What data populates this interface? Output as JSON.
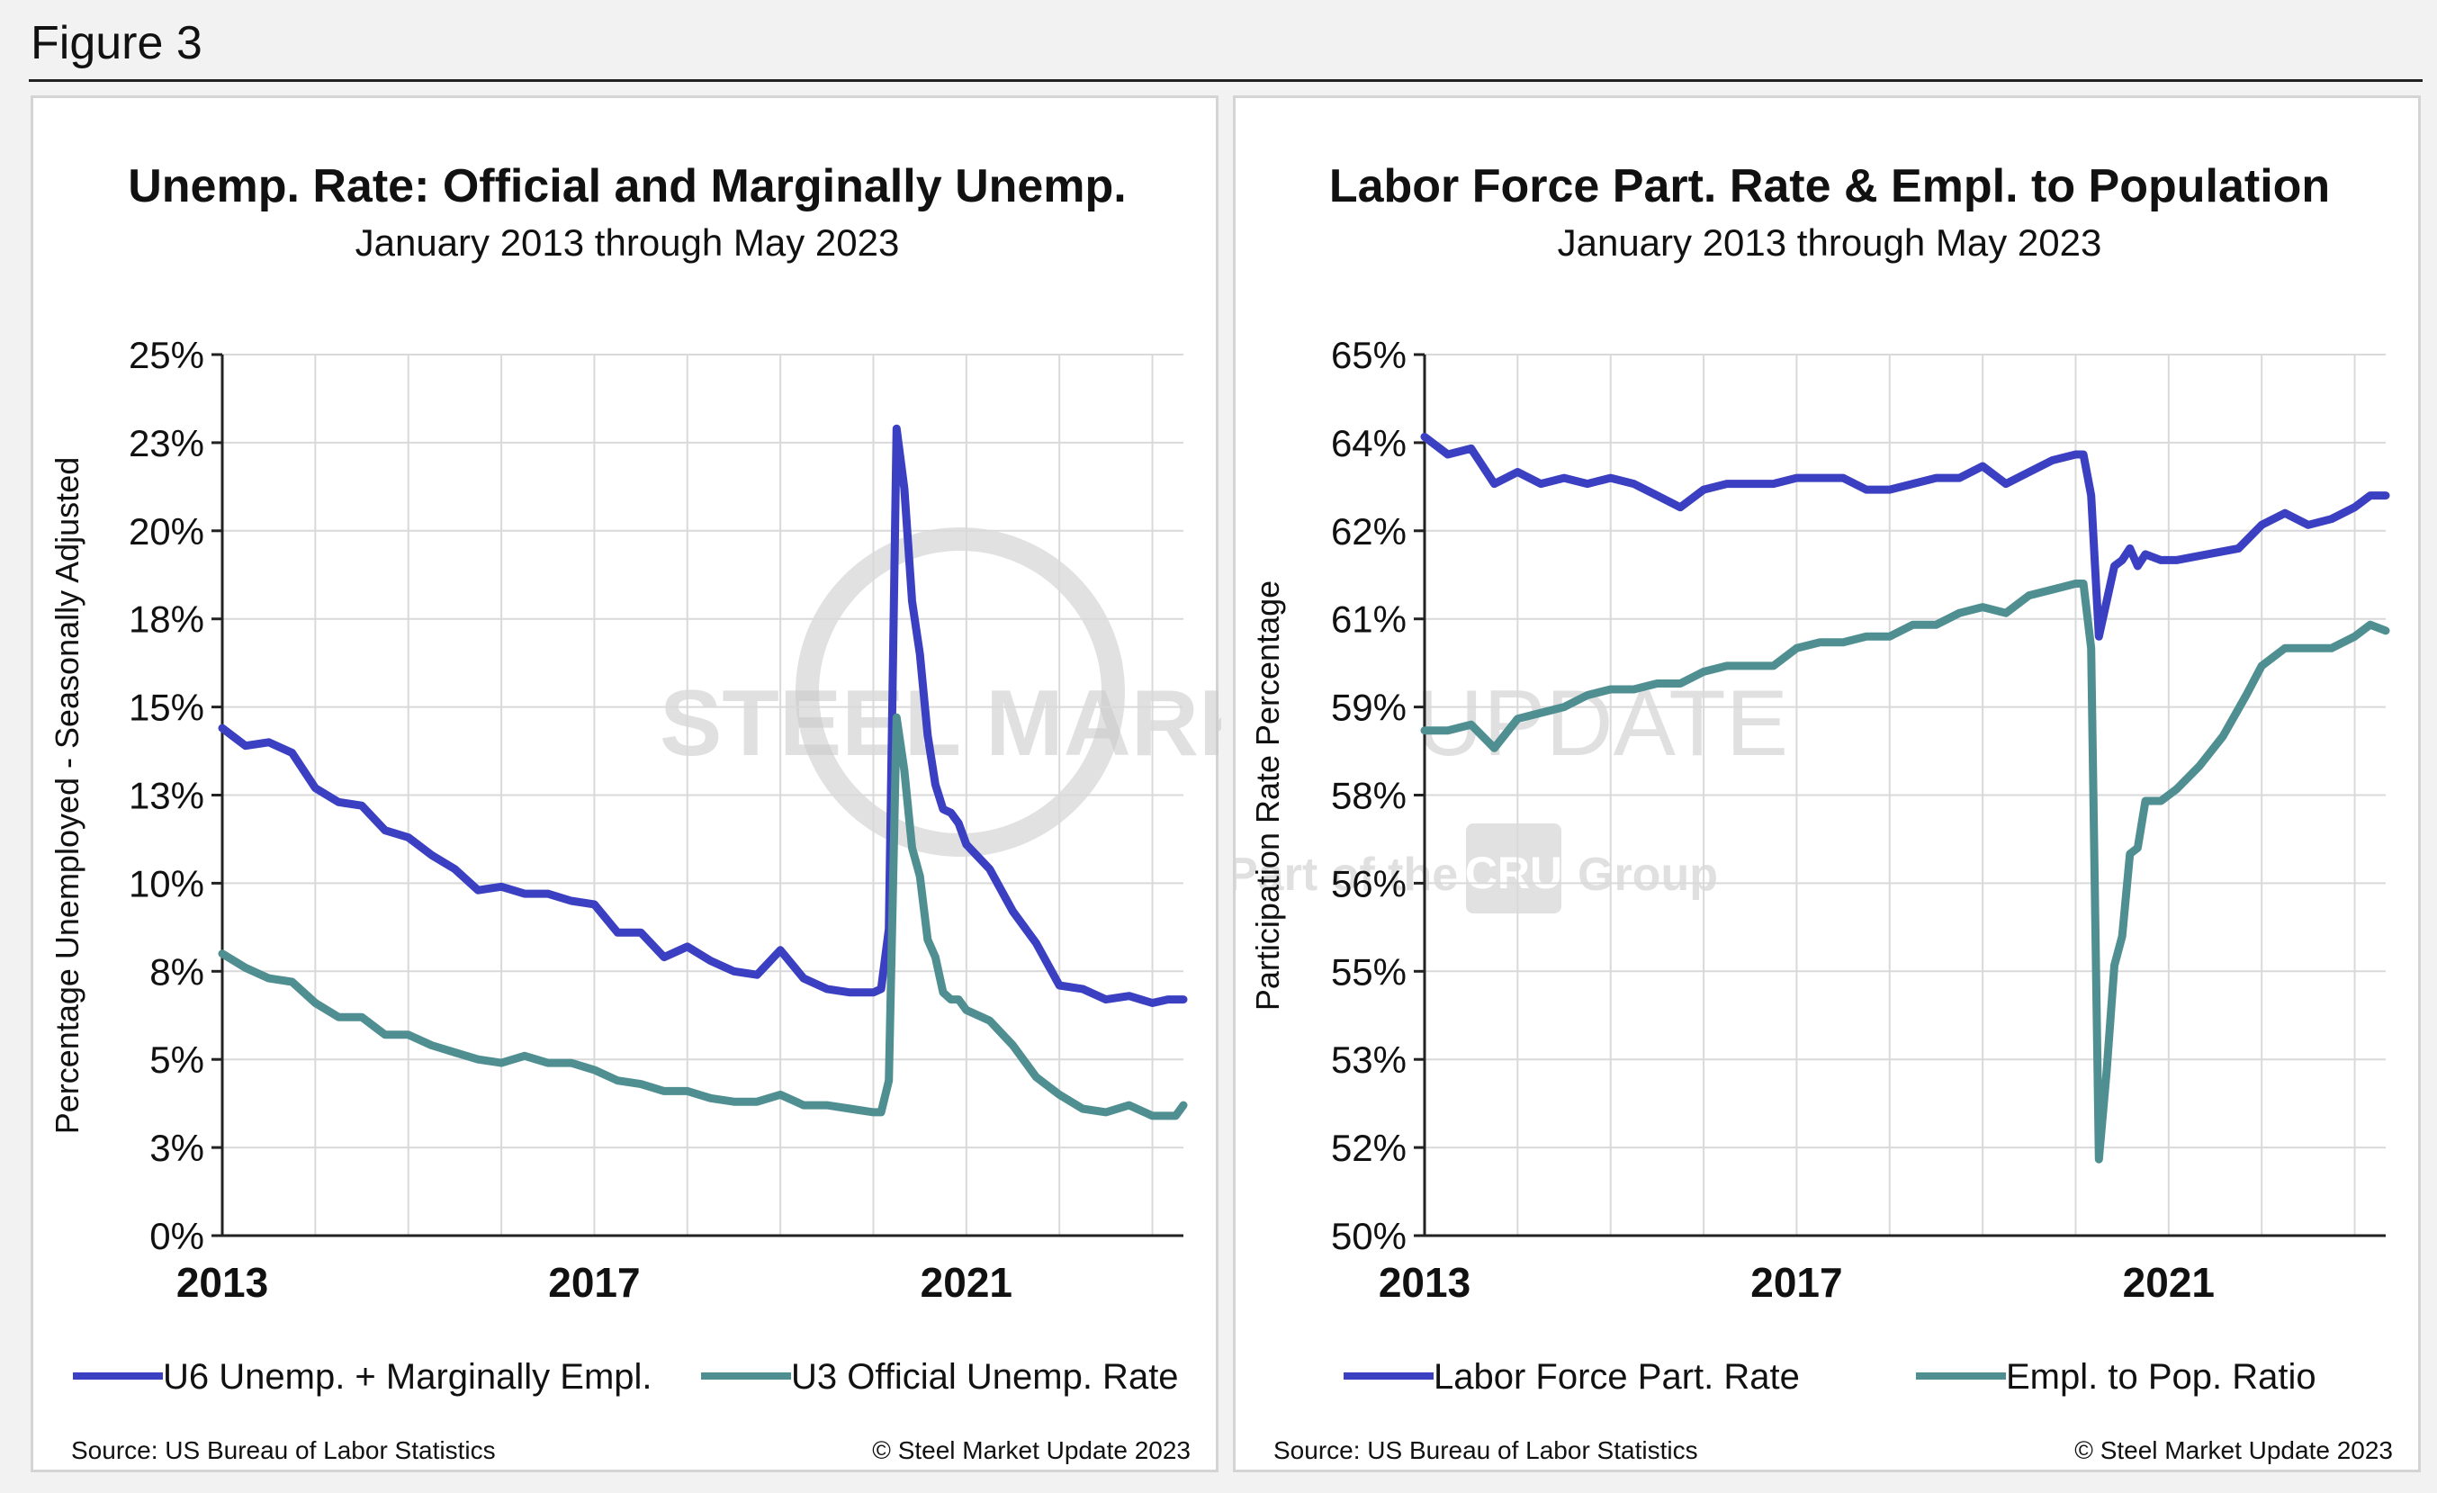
{
  "figure_label": "Figure 3",
  "watermark": {
    "name": "STEEL MARKET UPDATE",
    "word1": "STEEL MARKET",
    "word2": "UPDATE",
    "tag1": "Part of the",
    "logo": "CRU",
    "tag2": "Group"
  },
  "colors": {
    "u6": "#3b3fc1",
    "u3": "#4f8f91",
    "lfpr": "#3b3fc1",
    "epop": "#4f8f91",
    "grid": "#d9d9d9",
    "axis": "#222222"
  },
  "panels": [
    {
      "title": "Unemp. Rate: Official and Marginally Unemp.",
      "subtitle": "January 2013 through May 2023",
      "source": "Source: US Bureau of Labor Statistics",
      "copyright": "© Steel Market Update 2023",
      "legend": [
        "U6 Unemp. + Marginally Empl.",
        "U3 Official Unemp. Rate"
      ]
    },
    {
      "title": "Labor Force Part. Rate & Empl. to Population",
      "subtitle": "January 2013 through May 2023",
      "source": "Source: US Bureau of Labor Statistics",
      "copyright": "© Steel Market Update 2023",
      "legend": [
        "Labor Force Part. Rate",
        "Empl. to Pop. Ratio"
      ]
    }
  ],
  "chart_data": [
    {
      "type": "line",
      "title": "Unemp. Rate: Official and Marginally Unemp.",
      "subtitle": "January 2013 through May 2023",
      "xlabel": "",
      "ylabel": "Percentage Unemployed - Seasonally Adjusted",
      "x_ticks": [
        "2013",
        "2017",
        "2021"
      ],
      "y_ticks": [
        "0%",
        "3%",
        "5%",
        "8%",
        "10%",
        "13%",
        "15%",
        "18%",
        "20%",
        "23%",
        "25%"
      ],
      "ylim": [
        0,
        25
      ],
      "x_range": [
        "2013-01",
        "2023-05"
      ],
      "grid": true,
      "legend_position": "bottom",
      "series": [
        {
          "name": "U6 Unemp. + Marginally Empl.",
          "points": [
            [
              "2013-01",
              14.4
            ],
            [
              "2013-04",
              13.9
            ],
            [
              "2013-07",
              14.0
            ],
            [
              "2013-10",
              13.7
            ],
            [
              "2014-01",
              12.7
            ],
            [
              "2014-04",
              12.3
            ],
            [
              "2014-07",
              12.2
            ],
            [
              "2014-10",
              11.5
            ],
            [
              "2015-01",
              11.3
            ],
            [
              "2015-04",
              10.8
            ],
            [
              "2015-07",
              10.4
            ],
            [
              "2015-10",
              9.8
            ],
            [
              "2016-01",
              9.9
            ],
            [
              "2016-04",
              9.7
            ],
            [
              "2016-07",
              9.7
            ],
            [
              "2016-10",
              9.5
            ],
            [
              "2017-01",
              9.4
            ],
            [
              "2017-04",
              8.6
            ],
            [
              "2017-07",
              8.6
            ],
            [
              "2017-10",
              7.9
            ],
            [
              "2018-01",
              8.2
            ],
            [
              "2018-04",
              7.8
            ],
            [
              "2018-07",
              7.5
            ],
            [
              "2018-10",
              7.4
            ],
            [
              "2019-01",
              8.1
            ],
            [
              "2019-04",
              7.3
            ],
            [
              "2019-07",
              7.0
            ],
            [
              "2019-10",
              6.9
            ],
            [
              "2020-01",
              6.9
            ],
            [
              "2020-02",
              7.0
            ],
            [
              "2020-03",
              8.7
            ],
            [
              "2020-04",
              22.9
            ],
            [
              "2020-05",
              21.2
            ],
            [
              "2020-06",
              18.0
            ],
            [
              "2020-07",
              16.5
            ],
            [
              "2020-08",
              14.2
            ],
            [
              "2020-09",
              12.8
            ],
            [
              "2020-10",
              12.1
            ],
            [
              "2020-11",
              12.0
            ],
            [
              "2020-12",
              11.7
            ],
            [
              "2021-01",
              11.1
            ],
            [
              "2021-04",
              10.4
            ],
            [
              "2021-07",
              9.2
            ],
            [
              "2021-10",
              8.3
            ],
            [
              "2022-01",
              7.1
            ],
            [
              "2022-04",
              7.0
            ],
            [
              "2022-07",
              6.7
            ],
            [
              "2022-10",
              6.8
            ],
            [
              "2023-01",
              6.6
            ],
            [
              "2023-03",
              6.7
            ],
            [
              "2023-05",
              6.7
            ]
          ]
        },
        {
          "name": "U3 Official Unemp. Rate",
          "points": [
            [
              "2013-01",
              8.0
            ],
            [
              "2013-04",
              7.6
            ],
            [
              "2013-07",
              7.3
            ],
            [
              "2013-10",
              7.2
            ],
            [
              "2014-01",
              6.6
            ],
            [
              "2014-04",
              6.2
            ],
            [
              "2014-07",
              6.2
            ],
            [
              "2014-10",
              5.7
            ],
            [
              "2015-01",
              5.7
            ],
            [
              "2015-04",
              5.4
            ],
            [
              "2015-07",
              5.2
            ],
            [
              "2015-10",
              5.0
            ],
            [
              "2016-01",
              4.9
            ],
            [
              "2016-04",
              5.1
            ],
            [
              "2016-07",
              4.9
            ],
            [
              "2016-10",
              4.9
            ],
            [
              "2017-01",
              4.7
            ],
            [
              "2017-04",
              4.4
            ],
            [
              "2017-07",
              4.3
            ],
            [
              "2017-10",
              4.1
            ],
            [
              "2018-01",
              4.1
            ],
            [
              "2018-04",
              3.9
            ],
            [
              "2018-07",
              3.8
            ],
            [
              "2018-10",
              3.8
            ],
            [
              "2019-01",
              4.0
            ],
            [
              "2019-04",
              3.7
            ],
            [
              "2019-07",
              3.7
            ],
            [
              "2019-10",
              3.6
            ],
            [
              "2020-01",
              3.5
            ],
            [
              "2020-02",
              3.5
            ],
            [
              "2020-03",
              4.4
            ],
            [
              "2020-04",
              14.7
            ],
            [
              "2020-05",
              13.2
            ],
            [
              "2020-06",
              11.0
            ],
            [
              "2020-07",
              10.2
            ],
            [
              "2020-08",
              8.4
            ],
            [
              "2020-09",
              7.9
            ],
            [
              "2020-10",
              6.9
            ],
            [
              "2020-11",
              6.7
            ],
            [
              "2020-12",
              6.7
            ],
            [
              "2021-01",
              6.4
            ],
            [
              "2021-04",
              6.1
            ],
            [
              "2021-07",
              5.4
            ],
            [
              "2021-10",
              4.5
            ],
            [
              "2022-01",
              4.0
            ],
            [
              "2022-04",
              3.6
            ],
            [
              "2022-07",
              3.5
            ],
            [
              "2022-10",
              3.7
            ],
            [
              "2023-01",
              3.4
            ],
            [
              "2023-04",
              3.4
            ],
            [
              "2023-05",
              3.7
            ]
          ]
        }
      ]
    },
    {
      "type": "line",
      "title": "Labor Force Part. Rate & Empl. to Population",
      "subtitle": "January 2013 through May 2023",
      "xlabel": "",
      "ylabel": "Participation Rate Percentage",
      "x_ticks": [
        "2013",
        "2017",
        "2021"
      ],
      "y_ticks": [
        "50%",
        "52%",
        "53%",
        "55%",
        "56%",
        "58%",
        "59%",
        "61%",
        "62%",
        "64%",
        "65%"
      ],
      "ylim": [
        50,
        65
      ],
      "x_range": [
        "2013-01",
        "2023-05"
      ],
      "grid": true,
      "legend_position": "bottom",
      "series": [
        {
          "name": "Labor Force Part. Rate",
          "points": [
            [
              "2013-01",
              63.6
            ],
            [
              "2013-04",
              63.3
            ],
            [
              "2013-07",
              63.4
            ],
            [
              "2013-10",
              62.8
            ],
            [
              "2014-01",
              63.0
            ],
            [
              "2014-04",
              62.8
            ],
            [
              "2014-07",
              62.9
            ],
            [
              "2014-10",
              62.8
            ],
            [
              "2015-01",
              62.9
            ],
            [
              "2015-04",
              62.8
            ],
            [
              "2015-07",
              62.6
            ],
            [
              "2015-10",
              62.4
            ],
            [
              "2016-01",
              62.7
            ],
            [
              "2016-04",
              62.8
            ],
            [
              "2016-07",
              62.8
            ],
            [
              "2016-10",
              62.8
            ],
            [
              "2017-01",
              62.9
            ],
            [
              "2017-04",
              62.9
            ],
            [
              "2017-07",
              62.9
            ],
            [
              "2017-10",
              62.7
            ],
            [
              "2018-01",
              62.7
            ],
            [
              "2018-04",
              62.8
            ],
            [
              "2018-07",
              62.9
            ],
            [
              "2018-10",
              62.9
            ],
            [
              "2019-01",
              63.1
            ],
            [
              "2019-04",
              62.8
            ],
            [
              "2019-07",
              63.0
            ],
            [
              "2019-10",
              63.2
            ],
            [
              "2020-01",
              63.3
            ],
            [
              "2020-02",
              63.3
            ],
            [
              "2020-03",
              62.6
            ],
            [
              "2020-04",
              60.2
            ],
            [
              "2020-05",
              60.8
            ],
            [
              "2020-06",
              61.4
            ],
            [
              "2020-07",
              61.5
            ],
            [
              "2020-08",
              61.7
            ],
            [
              "2020-09",
              61.4
            ],
            [
              "2020-10",
              61.6
            ],
            [
              "2020-12",
              61.5
            ],
            [
              "2021-02",
              61.5
            ],
            [
              "2021-06",
              61.6
            ],
            [
              "2021-10",
              61.7
            ],
            [
              "2022-01",
              62.1
            ],
            [
              "2022-04",
              62.3
            ],
            [
              "2022-07",
              62.1
            ],
            [
              "2022-10",
              62.2
            ],
            [
              "2023-01",
              62.4
            ],
            [
              "2023-03",
              62.6
            ],
            [
              "2023-05",
              62.6
            ]
          ]
        },
        {
          "name": "Empl. to Pop. Ratio",
          "points": [
            [
              "2013-01",
              58.6
            ],
            [
              "2013-04",
              58.6
            ],
            [
              "2013-07",
              58.7
            ],
            [
              "2013-10",
              58.3
            ],
            [
              "2014-01",
              58.8
            ],
            [
              "2014-04",
              58.9
            ],
            [
              "2014-07",
              59.0
            ],
            [
              "2014-10",
              59.2
            ],
            [
              "2015-01",
              59.3
            ],
            [
              "2015-04",
              59.3
            ],
            [
              "2015-07",
              59.4
            ],
            [
              "2015-10",
              59.4
            ],
            [
              "2016-01",
              59.6
            ],
            [
              "2016-04",
              59.7
            ],
            [
              "2016-07",
              59.7
            ],
            [
              "2016-10",
              59.7
            ],
            [
              "2017-01",
              60.0
            ],
            [
              "2017-04",
              60.1
            ],
            [
              "2017-07",
              60.1
            ],
            [
              "2017-10",
              60.2
            ],
            [
              "2018-01",
              60.2
            ],
            [
              "2018-04",
              60.4
            ],
            [
              "2018-07",
              60.4
            ],
            [
              "2018-10",
              60.6
            ],
            [
              "2019-01",
              60.7
            ],
            [
              "2019-04",
              60.6
            ],
            [
              "2019-07",
              60.9
            ],
            [
              "2019-10",
              61.0
            ],
            [
              "2020-01",
              61.1
            ],
            [
              "2020-02",
              61.1
            ],
            [
              "2020-03",
              60.0
            ],
            [
              "2020-04",
              51.3
            ],
            [
              "2020-05",
              52.8
            ],
            [
              "2020-06",
              54.6
            ],
            [
              "2020-07",
              55.1
            ],
            [
              "2020-08",
              56.5
            ],
            [
              "2020-09",
              56.6
            ],
            [
              "2020-10",
              57.4
            ],
            [
              "2020-12",
              57.4
            ],
            [
              "2021-02",
              57.6
            ],
            [
              "2021-05",
              58.0
            ],
            [
              "2021-08",
              58.5
            ],
            [
              "2021-11",
              59.2
            ],
            [
              "2022-01",
              59.7
            ],
            [
              "2022-04",
              60.0
            ],
            [
              "2022-07",
              60.0
            ],
            [
              "2022-10",
              60.0
            ],
            [
              "2023-01",
              60.2
            ],
            [
              "2023-03",
              60.4
            ],
            [
              "2023-05",
              60.3
            ]
          ]
        }
      ]
    }
  ]
}
